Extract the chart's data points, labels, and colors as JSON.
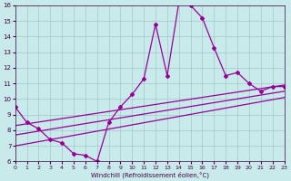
{
  "xlabel": "Windchill (Refroidissement éolien,°C)",
  "bg_color": "#c8eaea",
  "grid_color": "#a0c8c8",
  "line_color": "#990099",
  "xlim": [
    0,
    23
  ],
  "ylim": [
    6,
    16
  ],
  "xticks": [
    0,
    1,
    2,
    3,
    4,
    5,
    6,
    7,
    8,
    9,
    10,
    11,
    12,
    13,
    14,
    15,
    16,
    17,
    18,
    19,
    20,
    21,
    22,
    23
  ],
  "yticks": [
    6,
    7,
    8,
    9,
    10,
    11,
    12,
    13,
    14,
    15,
    16
  ],
  "series1_x": [
    0,
    1,
    2,
    3,
    4,
    5,
    6,
    7,
    8,
    9,
    10,
    11,
    12,
    13,
    14,
    15,
    16,
    17,
    18,
    19,
    20,
    21,
    22,
    23
  ],
  "series1_y": [
    9.5,
    8.5,
    8.1,
    7.4,
    7.2,
    6.5,
    6.4,
    6.0,
    8.5,
    9.5,
    10.3,
    11.3,
    14.8,
    11.5,
    16.2,
    16.0,
    15.2,
    13.3,
    11.5,
    11.7,
    11.0,
    10.5,
    10.8,
    10.8
  ],
  "trend1_x": [
    0,
    23
  ],
  "trend1_y": [
    8.3,
    10.9
  ],
  "trend2_x": [
    0,
    23
  ],
  "trend2_y": [
    7.7,
    10.5
  ],
  "trend3_x": [
    0,
    23
  ],
  "trend3_y": [
    7.0,
    10.1
  ]
}
